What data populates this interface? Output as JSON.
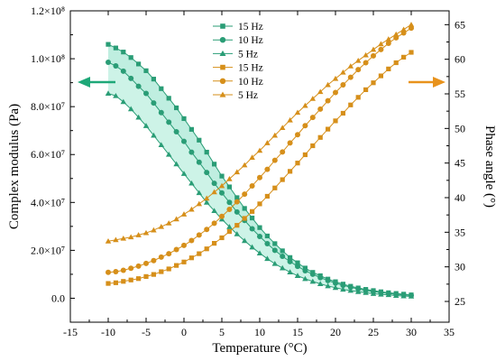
{
  "chart_data": {
    "type": "line",
    "x_label": "Temperature (°C)",
    "y_label_left": "Complex modulus (Pa)",
    "y_label_right": "Phase angle (°)",
    "x_range": [
      -15,
      35
    ],
    "x_ticks": [
      "-15",
      "-10",
      "-5",
      "0",
      "5",
      "10",
      "15",
      "20",
      "25",
      "30",
      "35"
    ],
    "y_left_range": [
      -10000000.0,
      120000000.0
    ],
    "y_left_ticks": [
      {
        "value": 0,
        "label": "0.0"
      },
      {
        "value": 20000000,
        "label": "2.0×10⁷"
      },
      {
        "value": 40000000,
        "label": "4.0×10⁷"
      },
      {
        "value": 60000000,
        "label": "6.0×10⁷"
      },
      {
        "value": 80000000,
        "label": "8.0×10⁷"
      },
      {
        "value": 100000000,
        "label": "1.0×10⁸"
      },
      {
        "value": 120000000,
        "label": "1.2×10⁸"
      }
    ],
    "y_right_range": [
      22,
      67
    ],
    "y_right_ticks": [
      "25",
      "30",
      "35",
      "40",
      "45",
      "50",
      "55",
      "60",
      "65"
    ],
    "x": [
      -10,
      -9,
      -8,
      -7,
      -6,
      -5,
      -4,
      -3,
      -2,
      -1,
      0,
      1,
      2,
      3,
      4,
      5,
      6,
      7,
      8,
      9,
      10,
      11,
      12,
      13,
      14,
      15,
      16,
      17,
      18,
      19,
      20,
      21,
      22,
      23,
      24,
      25,
      26,
      27,
      28,
      29,
      30
    ],
    "legend": {
      "placement": "top-center",
      "labels": [
        "15 Hz",
        "10 Hz",
        "5 Hz",
        "15 Hz",
        "10 Hz",
        "5 Hz"
      ]
    },
    "arrows": {
      "left_color": "#1ea878",
      "right_color": "#e8921c"
    },
    "series": [
      {
        "name": "15 Hz",
        "axis": "left",
        "marker": "square",
        "color": "#2a9d76",
        "values": [
          106000000,
          104500000,
          102800000,
          100500000,
          97800000,
          95000000,
          91500000,
          87500000,
          83500000,
          79500000,
          75000000,
          70500000,
          66000000,
          61000000,
          56000000,
          51000000,
          46500000,
          42000000,
          37500000,
          33500000,
          29500000,
          26000000,
          22800000,
          19800000,
          17000000,
          14800000,
          12600000,
          10800000,
          9400000,
          8000000,
          6900000,
          5900000,
          5000000,
          4300000,
          3700000,
          3200000,
          2700000,
          2300000,
          2000000,
          1700000,
          1400000
        ]
      },
      {
        "name": "10 Hz",
        "axis": "left",
        "marker": "circle",
        "color": "#2a9d76",
        "values": [
          98500000,
          97000000,
          94800000,
          91800000,
          88500000,
          85500000,
          81500000,
          77500000,
          73500000,
          69500000,
          65500000,
          61000000,
          56800000,
          52500000,
          48000000,
          44000000,
          40000000,
          36000000,
          32500000,
          29000000,
          25800000,
          22800000,
          20000000,
          17500000,
          15300000,
          13300000,
          11500000,
          10000000,
          8600000,
          7400000,
          6300000,
          5400000,
          4600000,
          3900000,
          3300000,
          2800000,
          2400000,
          2000000,
          1700000,
          1400000,
          1200000
        ]
      },
      {
        "name": "5 Hz",
        "axis": "left",
        "marker": "triangle",
        "color": "#2a9d76",
        "values": [
          85500000,
          84500000,
          82000000,
          79000000,
          75500000,
          72000000,
          68000000,
          64000000,
          60000000,
          56000000,
          52000000,
          48000000,
          44000000,
          40000000,
          36500000,
          33000000,
          29800000,
          26800000,
          24000000,
          21300000,
          18800000,
          16500000,
          14400000,
          12600000,
          10900000,
          9400000,
          8100000,
          7000000,
          6000000,
          5100000,
          4400000,
          3700000,
          3200000,
          2700000,
          2300000,
          1900000,
          1600000,
          1400000,
          1100000,
          900000,
          800000
        ]
      },
      {
        "name": "15 Hz",
        "axis": "right",
        "marker": "square",
        "color": "#d68f1a",
        "values": [
          27.6,
          27.7,
          27.9,
          28.1,
          28.3,
          28.6,
          28.9,
          29.3,
          29.7,
          30.2,
          30.7,
          31.3,
          31.9,
          32.6,
          33.4,
          34.2,
          35.1,
          36.0,
          37.0,
          38.0,
          39.1,
          40.2,
          41.4,
          42.6,
          43.8,
          45.0,
          46.2,
          47.5,
          48.7,
          49.9,
          51.1,
          52.2,
          53.4,
          54.5,
          55.6,
          56.6,
          57.6,
          58.6,
          59.5,
          60.3,
          61.0
        ]
      },
      {
        "name": "10 Hz",
        "axis": "right",
        "marker": "circle",
        "color": "#d68f1a",
        "values": [
          29.2,
          29.3,
          29.5,
          29.8,
          30.1,
          30.5,
          30.9,
          31.4,
          31.9,
          32.5,
          33.1,
          33.8,
          34.6,
          35.4,
          36.3,
          37.3,
          38.3,
          39.4,
          40.5,
          41.7,
          42.9,
          44.1,
          45.4,
          46.6,
          47.9,
          49.1,
          50.4,
          51.6,
          52.8,
          54.0,
          55.2,
          56.3,
          57.4,
          58.5,
          59.5,
          60.5,
          61.4,
          62.3,
          63.1,
          63.8,
          64.5
        ]
      },
      {
        "name": "5 Hz",
        "axis": "right",
        "marker": "triangle",
        "color": "#d68f1a",
        "values": [
          33.7,
          33.9,
          34.1,
          34.3,
          34.6,
          34.9,
          35.3,
          35.8,
          36.3,
          36.9,
          37.6,
          38.3,
          39.1,
          39.9,
          40.8,
          41.7,
          42.7,
          43.7,
          44.7,
          45.8,
          46.8,
          47.9,
          49.0,
          50.1,
          51.2,
          52.3,
          53.3,
          54.3,
          55.3,
          56.3,
          57.2,
          58.1,
          59.0,
          59.8,
          60.6,
          61.4,
          62.2,
          62.9,
          63.6,
          64.3,
          65.0
        ]
      }
    ]
  }
}
